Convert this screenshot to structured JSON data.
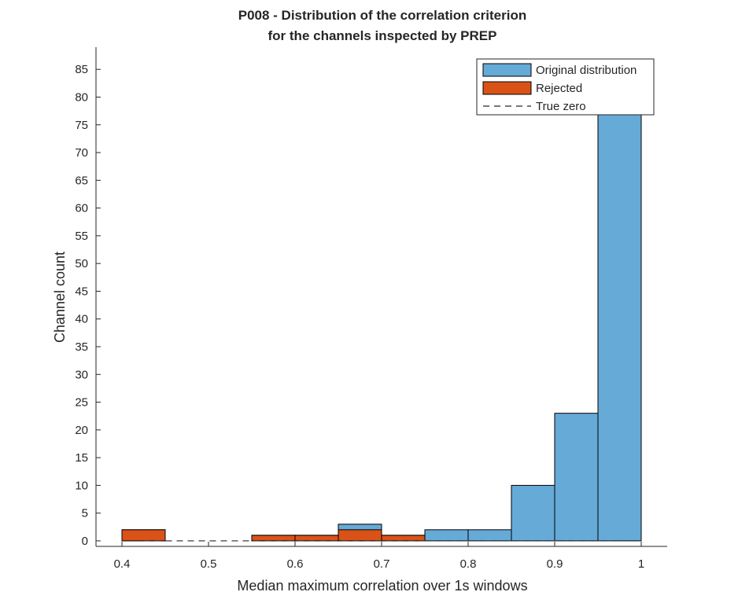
{
  "chart_data": {
    "type": "bar",
    "title": [
      "P008 - Distribution of the correlation criterion",
      "for the channels inspected by PREP"
    ],
    "xlabel": "Median maximum correlation over 1s windows",
    "ylabel": "Channel count",
    "xlim": [
      0.37,
      1.03
    ],
    "ylim": [
      -1,
      89
    ],
    "xticks": [
      0.4,
      0.5,
      0.6,
      0.7,
      0.8,
      0.9,
      1
    ],
    "xtick_labels": [
      "0.4",
      "0.5",
      "0.6",
      "0.7",
      "0.8",
      "0.9",
      "1"
    ],
    "yticks": [
      0,
      5,
      10,
      15,
      20,
      25,
      30,
      35,
      40,
      45,
      50,
      55,
      60,
      65,
      70,
      75,
      80,
      85
    ],
    "ytick_labels": [
      "0",
      "5",
      "10",
      "15",
      "20",
      "25",
      "30",
      "35",
      "40",
      "45",
      "50",
      "55",
      "60",
      "65",
      "70",
      "75",
      "80",
      "85"
    ],
    "bin_width": 0.05,
    "series": [
      {
        "name": "Original distribution",
        "color": "#66aad7",
        "bin_starts": [
          0.4,
          0.45,
          0.5,
          0.55,
          0.6,
          0.65,
          0.7,
          0.75,
          0.8,
          0.85,
          0.9,
          0.95
        ],
        "values": [
          2,
          0,
          0,
          1,
          1,
          3,
          1,
          2,
          2,
          10,
          23,
          77
        ]
      },
      {
        "name": "Rejected",
        "color": "#d95319",
        "bin_starts": [
          0.4,
          0.45,
          0.5,
          0.55,
          0.6,
          0.65,
          0.7,
          0.75,
          0.8,
          0.85,
          0.9,
          0.95
        ],
        "values": [
          2,
          0,
          0,
          1,
          1,
          2,
          1,
          0,
          0,
          0,
          0,
          0
        ]
      },
      {
        "name": "True zero",
        "style": "dashed",
        "color": "#262626",
        "x": [
          0.425,
          0.975
        ],
        "y": [
          0,
          0
        ]
      }
    ],
    "legend": {
      "position": "top-right",
      "entries": [
        "Original distribution",
        "Rejected",
        "True zero"
      ]
    },
    "grid": false
  }
}
